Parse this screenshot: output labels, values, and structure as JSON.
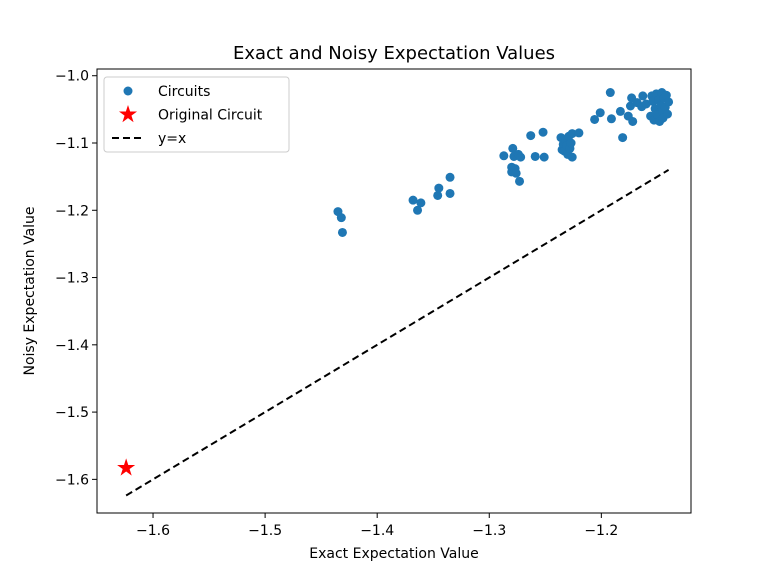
{
  "chart_data": {
    "type": "scatter",
    "title": "Exact and Noisy Expectation Values",
    "xlabel": "Exact Expectation Value",
    "ylabel": "Noisy Expectation Value",
    "xlim": [
      -1.65,
      -1.12
    ],
    "ylim": [
      -1.65,
      -0.99
    ],
    "xticks": [
      -1.6,
      -1.5,
      -1.4,
      -1.3,
      -1.2
    ],
    "yticks": [
      -1.0,
      -1.1,
      -1.2,
      -1.3,
      -1.4,
      -1.5,
      -1.6
    ],
    "xtick_labels": [
      "−1.6",
      "−1.5",
      "−1.4",
      "−1.3",
      "−1.2"
    ],
    "ytick_labels": [
      "−1.0",
      "−1.1",
      "−1.2",
      "−1.3",
      "−1.4",
      "−1.5",
      "−1.6"
    ],
    "grid": false,
    "legend": {
      "position": "top-left",
      "entries": [
        {
          "label": "Circuits",
          "marker": "circle",
          "color": "#1f77b4"
        },
        {
          "label": "Original Circuit",
          "marker": "star",
          "color": "#ff0000"
        },
        {
          "label": "y=x",
          "marker": "dashed-line",
          "color": "#000000"
        }
      ]
    },
    "series": [
      {
        "name": "Circuits",
        "color": "#1f77b4",
        "marker": "circle",
        "points": [
          [
            -1.435,
            -1.202
          ],
          [
            -1.432,
            -1.211
          ],
          [
            -1.431,
            -1.233
          ],
          [
            -1.368,
            -1.185
          ],
          [
            -1.364,
            -1.2
          ],
          [
            -1.361,
            -1.189
          ],
          [
            -1.346,
            -1.178
          ],
          [
            -1.345,
            -1.167
          ],
          [
            -1.335,
            -1.151
          ],
          [
            -1.335,
            -1.175
          ],
          [
            -1.287,
            -1.119
          ],
          [
            -1.28,
            -1.136
          ],
          [
            -1.28,
            -1.143
          ],
          [
            -1.279,
            -1.108
          ],
          [
            -1.278,
            -1.12
          ],
          [
            -1.277,
            -1.138
          ],
          [
            -1.276,
            -1.145
          ],
          [
            -1.274,
            -1.117
          ],
          [
            -1.273,
            -1.157
          ],
          [
            -1.272,
            -1.121
          ],
          [
            -1.263,
            -1.089
          ],
          [
            -1.259,
            -1.12
          ],
          [
            -1.252,
            -1.084
          ],
          [
            -1.251,
            -1.121
          ],
          [
            -1.236,
            -1.092
          ],
          [
            -1.235,
            -1.11
          ],
          [
            -1.234,
            -1.102
          ],
          [
            -1.233,
            -1.112
          ],
          [
            -1.232,
            -1.096
          ],
          [
            -1.231,
            -1.104
          ],
          [
            -1.23,
            -1.117
          ],
          [
            -1.229,
            -1.09
          ],
          [
            -1.228,
            -1.108
          ],
          [
            -1.227,
            -1.1
          ],
          [
            -1.226,
            -1.086
          ],
          [
            -1.226,
            -1.121
          ],
          [
            -1.22,
            -1.085
          ],
          [
            -1.206,
            -1.065
          ],
          [
            -1.201,
            -1.055
          ],
          [
            -1.192,
            -1.025
          ],
          [
            -1.191,
            -1.064
          ],
          [
            -1.183,
            -1.053
          ],
          [
            -1.181,
            -1.092
          ],
          [
            -1.176,
            -1.06
          ],
          [
            -1.174,
            -1.045
          ],
          [
            -1.173,
            -1.033
          ],
          [
            -1.172,
            -1.068
          ],
          [
            -1.168,
            -1.04
          ],
          [
            -1.164,
            -1.046
          ],
          [
            -1.163,
            -1.03
          ],
          [
            -1.16,
            -1.042
          ],
          [
            -1.156,
            -1.06
          ],
          [
            -1.155,
            -1.03
          ],
          [
            -1.154,
            -1.038
          ],
          [
            -1.153,
            -1.066
          ],
          [
            -1.152,
            -1.049
          ],
          [
            -1.151,
            -1.027
          ],
          [
            -1.15,
            -1.058
          ],
          [
            -1.149,
            -1.036
          ],
          [
            -1.148,
            -1.068
          ],
          [
            -1.147,
            -1.044
          ],
          [
            -1.146,
            -1.025
          ],
          [
            -1.145,
            -1.054
          ],
          [
            -1.145,
            -1.063
          ],
          [
            -1.144,
            -1.033
          ],
          [
            -1.143,
            -1.047
          ],
          [
            -1.142,
            -1.029
          ],
          [
            -1.141,
            -1.057
          ],
          [
            -1.14,
            -1.039
          ]
        ]
      },
      {
        "name": "Original Circuit",
        "color": "#ff0000",
        "marker": "star",
        "points": [
          [
            -1.624,
            -1.583
          ]
        ]
      },
      {
        "name": "y=x",
        "color": "#000000",
        "style": "dashed",
        "points": [
          [
            -1.624,
            -1.624
          ],
          [
            -1.14,
            -1.14
          ]
        ]
      }
    ]
  }
}
